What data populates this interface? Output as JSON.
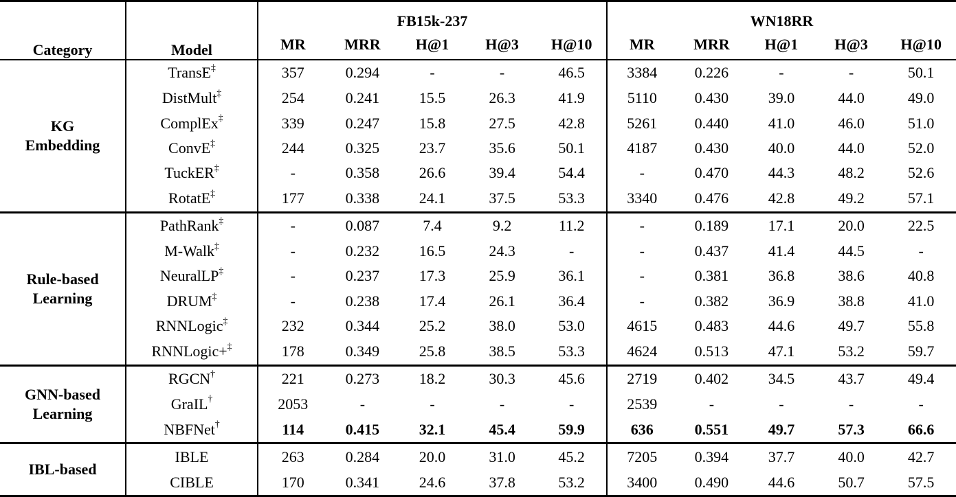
{
  "colors": {
    "text": "#000000",
    "background": "#ffffff",
    "rule": "#000000"
  },
  "table": {
    "header": {
      "category": "Category",
      "model": "Model",
      "group_fb": "FB15k-237",
      "group_wn": "WN18RR",
      "metrics": [
        "MR",
        "MRR",
        "H@1",
        "H@3",
        "H@10"
      ]
    },
    "sections": [
      {
        "category": "KG\nEmbedding",
        "rows": [
          {
            "model": "TransE",
            "sup": "‡",
            "bold": false,
            "fb": [
              "357",
              "0.294",
              "-",
              "-",
              "46.5"
            ],
            "wn": [
              "3384",
              "0.226",
              "-",
              "-",
              "50.1"
            ]
          },
          {
            "model": "DistMult",
            "sup": "‡",
            "bold": false,
            "fb": [
              "254",
              "0.241",
              "15.5",
              "26.3",
              "41.9"
            ],
            "wn": [
              "5110",
              "0.430",
              "39.0",
              "44.0",
              "49.0"
            ]
          },
          {
            "model": "ComplEx",
            "sup": "‡",
            "bold": false,
            "fb": [
              "339",
              "0.247",
              "15.8",
              "27.5",
              "42.8"
            ],
            "wn": [
              "5261",
              "0.440",
              "41.0",
              "46.0",
              "51.0"
            ]
          },
          {
            "model": "ConvE",
            "sup": "‡",
            "bold": false,
            "fb": [
              "244",
              "0.325",
              "23.7",
              "35.6",
              "50.1"
            ],
            "wn": [
              "4187",
              "0.430",
              "40.0",
              "44.0",
              "52.0"
            ]
          },
          {
            "model": "TuckER",
            "sup": "‡",
            "bold": false,
            "fb": [
              "-",
              "0.358",
              "26.6",
              "39.4",
              "54.4"
            ],
            "wn": [
              "-",
              "0.470",
              "44.3",
              "48.2",
              "52.6"
            ]
          },
          {
            "model": "RotatE",
            "sup": "‡",
            "bold": false,
            "fb": [
              "177",
              "0.338",
              "24.1",
              "37.5",
              "53.3"
            ],
            "wn": [
              "3340",
              "0.476",
              "42.8",
              "49.2",
              "57.1"
            ]
          }
        ]
      },
      {
        "category": "Rule-based\nLearning",
        "rows": [
          {
            "model": "PathRank",
            "sup": "‡",
            "bold": false,
            "fb": [
              "-",
              "0.087",
              "7.4",
              "9.2",
              "11.2"
            ],
            "wn": [
              "-",
              "0.189",
              "17.1",
              "20.0",
              "22.5"
            ]
          },
          {
            "model": "M-Walk",
            "sup": "‡",
            "bold": false,
            "fb": [
              "-",
              "0.232",
              "16.5",
              "24.3",
              "-"
            ],
            "wn": [
              "-",
              "0.437",
              "41.4",
              "44.5",
              "-"
            ]
          },
          {
            "model": "NeuralLP",
            "sup": "‡",
            "bold": false,
            "fb": [
              "-",
              "0.237",
              "17.3",
              "25.9",
              "36.1"
            ],
            "wn": [
              "-",
              "0.381",
              "36.8",
              "38.6",
              "40.8"
            ]
          },
          {
            "model": "DRUM",
            "sup": "‡",
            "bold": false,
            "fb": [
              "-",
              "0.238",
              "17.4",
              "26.1",
              "36.4"
            ],
            "wn": [
              "-",
              "0.382",
              "36.9",
              "38.8",
              "41.0"
            ]
          },
          {
            "model": "RNNLogic",
            "sup": "‡",
            "bold": false,
            "fb": [
              "232",
              "0.344",
              "25.2",
              "38.0",
              "53.0"
            ],
            "wn": [
              "4615",
              "0.483",
              "44.6",
              "49.7",
              "55.8"
            ]
          },
          {
            "model": "RNNLogic+",
            "sup": "‡",
            "bold": false,
            "fb": [
              "178",
              "0.349",
              "25.8",
              "38.5",
              "53.3"
            ],
            "wn": [
              "4624",
              "0.513",
              "47.1",
              "53.2",
              "59.7"
            ]
          }
        ]
      },
      {
        "category": "GNN-based\nLearning",
        "rows": [
          {
            "model": "RGCN",
            "sup": "†",
            "bold": false,
            "fb": [
              "221",
              "0.273",
              "18.2",
              "30.3",
              "45.6"
            ],
            "wn": [
              "2719",
              "0.402",
              "34.5",
              "43.7",
              "49.4"
            ]
          },
          {
            "model": "GraIL",
            "sup": "†",
            "bold": false,
            "fb": [
              "2053",
              "-",
              "-",
              "-",
              "-"
            ],
            "wn": [
              "2539",
              "-",
              "-",
              "-",
              "-"
            ]
          },
          {
            "model": "NBFNet",
            "sup": "†",
            "bold": true,
            "fb": [
              "114",
              "0.415",
              "32.1",
              "45.4",
              "59.9"
            ],
            "wn": [
              "636",
              "0.551",
              "49.7",
              "57.3",
              "66.6"
            ]
          }
        ]
      },
      {
        "category": "IBL-based",
        "rows": [
          {
            "model": "IBLE",
            "sup": "",
            "bold": false,
            "fb": [
              "263",
              "0.284",
              "20.0",
              "31.0",
              "45.2"
            ],
            "wn": [
              "7205",
              "0.394",
              "37.7",
              "40.0",
              "42.7"
            ]
          },
          {
            "model": "CIBLE",
            "sup": "",
            "bold": false,
            "fb": [
              "170",
              "0.341",
              "24.6",
              "37.8",
              "53.2"
            ],
            "wn": [
              "3400",
              "0.490",
              "44.6",
              "50.7",
              "57.5"
            ]
          }
        ]
      }
    ]
  }
}
